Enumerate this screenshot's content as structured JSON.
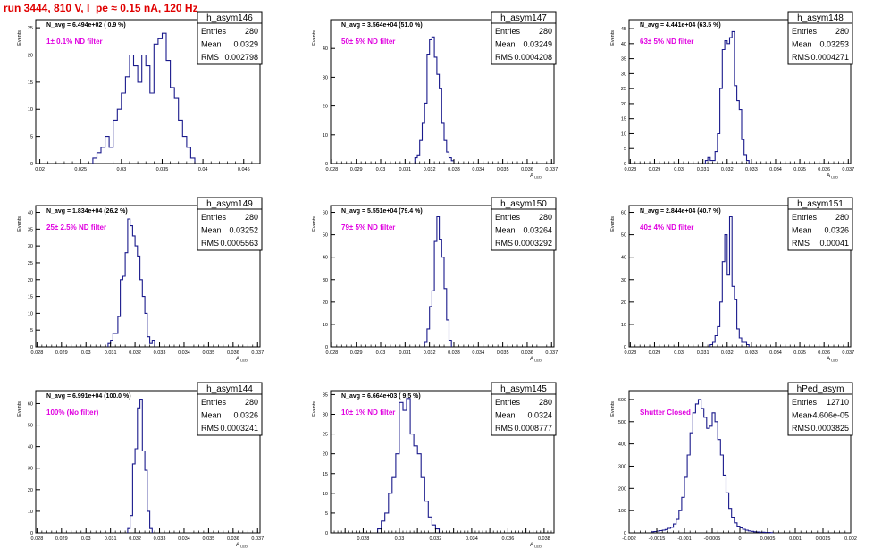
{
  "page": {
    "title": "run 3444,   810 V, I_pe ≈ 0.15 nA, 120 Hz"
  },
  "colors": {
    "hist": "#1a1a8c",
    "annotation": "#e000e0",
    "title": "#e00000"
  },
  "chart_data": [
    {
      "type": "bar",
      "name": "h_asym146",
      "entries": "280",
      "mean": "0.0329",
      "rms": "0.002798",
      "navg": "N_avg = 6.494e+02 ( 0.9 %)",
      "note": "1± 0.1% ND filter",
      "xlabel": "",
      "ylabel": "Events",
      "xlim": [
        0.0195,
        0.047
      ],
      "ylim": [
        0,
        26.5
      ],
      "xticks": [
        0.02,
        0.025,
        0.03,
        0.035,
        0.04,
        0.045
      ],
      "xticklabels": [
        "0.02",
        "0.025",
        "0.03",
        "0.035",
        "0.04",
        "0.045"
      ],
      "yticks": [
        0,
        5,
        10,
        15,
        20,
        25
      ],
      "bin_start": 0.0265,
      "bin_width": 0.0005,
      "counts": [
        1,
        2,
        3,
        5,
        3,
        8,
        10,
        13,
        16,
        20,
        18,
        15,
        20,
        18,
        13,
        22,
        23,
        24,
        19,
        14,
        12,
        8,
        5,
        3,
        1
      ]
    },
    {
      "type": "bar",
      "name": "h_asym147",
      "entries": "280",
      "mean": "0.03249",
      "rms": "0.0004208",
      "navg": "N_avg = 3.564e+04 (51.0 %)",
      "note": "50± 5% ND filter",
      "xlabel": "A_LED",
      "ylabel": "Events",
      "xlim": [
        0.02795,
        0.0371
      ],
      "ylim": [
        0,
        50
      ],
      "xticks": [
        0.028,
        0.029,
        0.03,
        0.031,
        0.032,
        0.033,
        0.034,
        0.035,
        0.036,
        0.037
      ],
      "xticklabels": [
        "0.028",
        "0.029",
        "0.03",
        "0.031",
        "0.032",
        "0.033",
        "0.034",
        "0.035",
        "0.036",
        "0.037"
      ],
      "yticks": [
        0,
        10,
        20,
        30,
        40
      ],
      "bin_start": 0.0314,
      "bin_width": 0.0001,
      "counts": [
        2,
        3,
        8,
        14,
        21,
        38,
        43,
        44,
        37,
        31,
        26,
        14,
        8,
        4,
        2,
        1
      ]
    },
    {
      "type": "bar",
      "name": "h_asym148",
      "entries": "280",
      "mean": "0.03253",
      "rms": "0.0004271",
      "navg": "N_avg = 4.441e+04 (63.5 %)",
      "note": "63± 5% ND filter",
      "xlabel": "A_LED",
      "ylabel": "Events",
      "xlim": [
        0.02795,
        0.0371
      ],
      "ylim": [
        0,
        48
      ],
      "xticks": [
        0.028,
        0.029,
        0.03,
        0.031,
        0.032,
        0.033,
        0.034,
        0.035,
        0.036,
        0.037
      ],
      "xticklabels": [
        "0.028",
        "0.029",
        "0.03",
        "0.031",
        "0.032",
        "0.033",
        "0.034",
        "0.035",
        "0.036",
        "0.037"
      ],
      "yticks": [
        0,
        5,
        10,
        15,
        20,
        25,
        30,
        35,
        40,
        45
      ],
      "bin_start": 0.0311,
      "bin_width": 0.0001,
      "counts": [
        1,
        2,
        1,
        1,
        4,
        10,
        25,
        38,
        41,
        40,
        42,
        44,
        26,
        21,
        18,
        8,
        3,
        1
      ]
    },
    {
      "type": "bar",
      "name": "h_asym149",
      "entries": "280",
      "mean": "0.03252",
      "rms": "0.0005563",
      "navg": "N_avg = 1.834e+04 (26.2 %)",
      "note": "25± 2.5% ND filter",
      "xlabel": "A_LED",
      "ylabel": "Events",
      "xlim": [
        0.02795,
        0.0371
      ],
      "ylim": [
        0,
        42
      ],
      "xticks": [
        0.028,
        0.029,
        0.03,
        0.031,
        0.032,
        0.033,
        0.034,
        0.035,
        0.036,
        0.037
      ],
      "xticklabels": [
        "0.028",
        "0.029",
        "0.03",
        "0.031",
        "0.032",
        "0.033",
        "0.034",
        "0.035",
        "0.036",
        "0.037"
      ],
      "yticks": [
        0,
        5,
        10,
        15,
        20,
        25,
        30,
        35,
        40
      ],
      "bin_start": 0.0309,
      "bin_width": 0.0001,
      "counts": [
        1,
        2,
        4,
        4,
        9,
        20,
        21,
        28,
        38,
        36,
        33,
        30,
        27,
        20,
        15,
        10,
        3,
        1,
        2
      ]
    },
    {
      "type": "bar",
      "name": "h_asym150",
      "entries": "280",
      "mean": "0.03264",
      "rms": "0.0003292",
      "navg": "N_avg = 5.551e+04 (79.4 %)",
      "note": "79± 5% ND filter",
      "xlabel": "A_LED",
      "ylabel": "Events",
      "xlim": [
        0.02795,
        0.0371
      ],
      "ylim": [
        0,
        63
      ],
      "xticks": [
        0.028,
        0.029,
        0.03,
        0.031,
        0.032,
        0.033,
        0.034,
        0.035,
        0.036,
        0.037
      ],
      "xticklabels": [
        "0.028",
        "0.029",
        "0.03",
        "0.031",
        "0.032",
        "0.033",
        "0.034",
        "0.035",
        "0.036",
        "0.037"
      ],
      "yticks": [
        0,
        10,
        20,
        30,
        40,
        50,
        60
      ],
      "bin_start": 0.0318,
      "bin_width": 0.0001,
      "counts": [
        2,
        8,
        18,
        25,
        47,
        58,
        48,
        40,
        26,
        12,
        3
      ]
    },
    {
      "type": "bar",
      "name": "h_asym151",
      "entries": "280",
      "mean": "0.0326",
      "rms": "0.00041",
      "navg": "N_avg = 2.844e+04 (40.7 %)",
      "note": "40± 4% ND filter",
      "xlabel": "A_LED",
      "ylabel": "Events",
      "xlim": [
        0.02795,
        0.0371
      ],
      "ylim": [
        0,
        63
      ],
      "xticks": [
        0.028,
        0.029,
        0.03,
        0.031,
        0.032,
        0.033,
        0.034,
        0.035,
        0.036,
        0.037
      ],
      "xticklabels": [
        "0.028",
        "0.029",
        "0.03",
        "0.031",
        "0.032",
        "0.033",
        "0.034",
        "0.035",
        "0.036",
        "0.037"
      ],
      "yticks": [
        0,
        10,
        20,
        30,
        40,
        50,
        60
      ],
      "bin_start": 0.0313,
      "bin_width": 0.0001,
      "counts": [
        1,
        2,
        5,
        9,
        20,
        38,
        50,
        32,
        58,
        27,
        21,
        8,
        4,
        2,
        2,
        1
      ]
    },
    {
      "type": "bar",
      "name": "h_asym144",
      "entries": "280",
      "mean": "0.0326",
      "rms": "0.0003241",
      "navg": "N_avg = 6.991e+04 (100.0 %)",
      "note": "100% (No filter)",
      "xlabel": "A_LED",
      "ylabel": "Events",
      "xlim": [
        0.02795,
        0.0371
      ],
      "ylim": [
        0,
        66
      ],
      "xticks": [
        0.028,
        0.029,
        0.03,
        0.031,
        0.032,
        0.033,
        0.034,
        0.035,
        0.036,
        0.037
      ],
      "xticklabels": [
        "0.028",
        "0.029",
        "0.03",
        "0.031",
        "0.032",
        "0.033",
        "0.034",
        "0.035",
        "0.036",
        "0.037"
      ],
      "yticks": [
        0,
        10,
        20,
        30,
        40,
        50,
        60
      ],
      "bin_start": 0.0317,
      "bin_width": 0.0001,
      "counts": [
        2,
        8,
        32,
        39,
        58,
        62,
        38,
        29,
        10,
        2
      ]
    },
    {
      "type": "bar",
      "name": "h_asym145",
      "entries": "280",
      "mean": "0.0324",
      "rms": "0.0008777",
      "navg": "N_avg = 6.664e+03 ( 9.5 %)",
      "note": "10± 1% ND filter",
      "xlabel": "A_LED",
      "ylabel": "Events",
      "xlim": [
        0.0272,
        0.03955
      ],
      "ylim": [
        0,
        36
      ],
      "xticks": [
        0.028,
        0.029,
        0.03,
        0.031,
        0.032,
        0.033,
        0.034,
        0.035,
        0.036,
        0.037,
        0.038,
        0.039
      ],
      "xticklabels": [
        "",
        "0.028",
        "",
        "0.03",
        "",
        "0.032",
        "",
        "0.034",
        "",
        "0.036",
        "",
        "0.038"
      ],
      "yticks": [
        0,
        5,
        10,
        15,
        20,
        25,
        30,
        35
      ],
      "bin_start": 0.0298,
      "bin_width": 0.0002,
      "counts": [
        1,
        3,
        5,
        10,
        14,
        20,
        33,
        31,
        34,
        25,
        22,
        20,
        14,
        8,
        4,
        2,
        1
      ]
    },
    {
      "type": "bar",
      "name": "hPed_asym",
      "entries": "12710",
      "mean": "-4.606e-05",
      "rms": "0.0003825",
      "navg": "",
      "note": "Shutter Closed",
      "xlabel": "",
      "ylabel": "Events",
      "xlim": [
        -0.002,
        0.002
      ],
      "ylim": [
        0,
        640
      ],
      "xticks": [
        -0.002,
        -0.0015,
        -0.001,
        -0.0005,
        0,
        0.0005,
        0.001,
        0.0015,
        0.002
      ],
      "xticklabels": [
        "-0.002",
        "-0.0015",
        "-0.001",
        "-0.0005",
        "0",
        "0.0005",
        "0.001",
        "0.0015",
        "0.002"
      ],
      "yticks": [
        0,
        100,
        200,
        300,
        400,
        500,
        600
      ],
      "bin_start": -0.0016,
      "bin_width": 5e-05,
      "counts": [
        5,
        6,
        8,
        10,
        12,
        15,
        20,
        25,
        40,
        60,
        100,
        160,
        250,
        350,
        450,
        540,
        580,
        600,
        560,
        520,
        470,
        480,
        540,
        500,
        420,
        350,
        260,
        180,
        110,
        70,
        45,
        30,
        22,
        16,
        12,
        9,
        7,
        5,
        4,
        3,
        3,
        2,
        2,
        1
      ]
    }
  ]
}
